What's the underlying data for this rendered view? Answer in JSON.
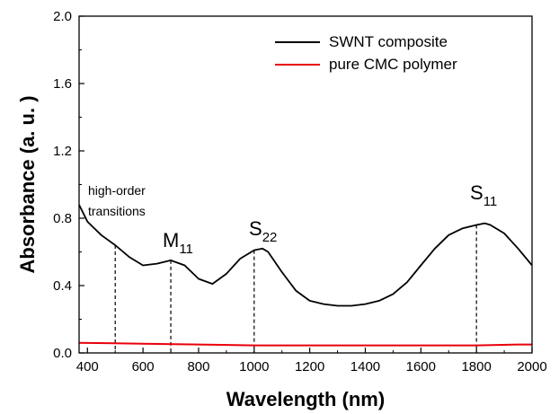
{
  "chart_data": {
    "type": "line",
    "xlabel": "Wavelength (nm)",
    "ylabel": "Absorbance (a. u. )",
    "xlim": [
      370,
      2000
    ],
    "ylim": [
      0.0,
      2.0
    ],
    "x_ticks": [
      "400",
      "600",
      "800",
      "1000",
      "1200",
      "1400",
      "1600",
      "1800",
      "2000"
    ],
    "y_ticks": [
      "0.0",
      "0.4",
      "0.8",
      "1.2",
      "1.6",
      "2.0"
    ],
    "legend_position": "top-right",
    "series": [
      {
        "name": "SWNT composite",
        "color": "#000000",
        "x": [
          370,
          400,
          450,
          500,
          550,
          600,
          650,
          700,
          750,
          800,
          850,
          900,
          950,
          1000,
          1030,
          1050,
          1100,
          1150,
          1200,
          1250,
          1300,
          1350,
          1400,
          1450,
          1500,
          1550,
          1600,
          1650,
          1700,
          1750,
          1800,
          1830,
          1850,
          1900,
          1950,
          2000
        ],
        "y": [
          0.88,
          0.78,
          0.7,
          0.64,
          0.57,
          0.52,
          0.53,
          0.55,
          0.52,
          0.44,
          0.41,
          0.47,
          0.56,
          0.61,
          0.62,
          0.6,
          0.48,
          0.37,
          0.31,
          0.29,
          0.28,
          0.28,
          0.29,
          0.31,
          0.35,
          0.42,
          0.52,
          0.62,
          0.7,
          0.74,
          0.76,
          0.77,
          0.76,
          0.71,
          0.62,
          0.52
        ]
      },
      {
        "name": "pure CMC polymer",
        "color": "#e8000b",
        "x": [
          370,
          600,
          800,
          1000,
          1200,
          1400,
          1600,
          1800,
          1950,
          2000
        ],
        "y": [
          0.06,
          0.055,
          0.05,
          0.045,
          0.045,
          0.045,
          0.045,
          0.045,
          0.05,
          0.05
        ]
      }
    ],
    "annotations": [
      {
        "id": "high_order",
        "lines": [
          "high-order",
          "transitions"
        ],
        "x": 500
      },
      {
        "id": "m11",
        "main": "M",
        "sub": "11",
        "x": 700
      },
      {
        "id": "s22",
        "main": "S",
        "sub": "22",
        "x": 1000
      },
      {
        "id": "s11",
        "main": "S",
        "sub": "11",
        "x": 1800
      }
    ],
    "marker_lines_x": [
      500,
      700,
      1000,
      1800
    ]
  }
}
